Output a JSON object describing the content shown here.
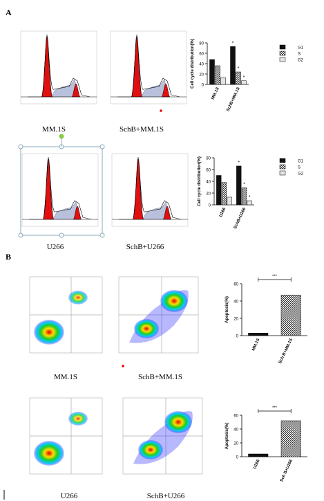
{
  "figure": {
    "panels": [
      "A",
      "B"
    ],
    "captions": [
      "MM.1S",
      "SchB+MM.1S",
      "U266",
      "SchB+U266",
      "MM.1S",
      "SchB+MM.1S",
      "U266",
      "SchB+U266"
    ]
  },
  "chart_data": [
    {
      "type": "bar",
      "ylabel": "Cell cycle distribution(%)",
      "categories": [
        "MM.1S",
        "SchB+MM.1S"
      ],
      "series": [
        {
          "name": "G1",
          "color": "#111111",
          "values": [
            48,
            73
          ],
          "marks": [
            null,
            "*"
          ]
        },
        {
          "name": "S",
          "color": "#7a7a7a",
          "values": [
            36,
            24
          ],
          "marks": [
            null,
            "*"
          ]
        },
        {
          "name": "G2",
          "color": "#e4e4e4",
          "values": [
            13,
            7
          ],
          "marks": [
            null,
            "*"
          ]
        }
      ],
      "ylim": [
        0,
        80
      ],
      "yticks": [
        0,
        20,
        40,
        60,
        80
      ]
    },
    {
      "type": "bar",
      "ylabel": "Cell cycle distribution(%)",
      "categories": [
        "U266",
        "SchB+U266"
      ],
      "series": [
        {
          "name": "G1",
          "color": "#111111",
          "values": [
            50,
            66
          ],
          "marks": [
            null,
            "*"
          ]
        },
        {
          "name": "S",
          "color": "#7a7a7a",
          "values": [
            38,
            29
          ],
          "marks": [
            null,
            "*"
          ]
        },
        {
          "name": "G2",
          "color": "#e4e4e4",
          "values": [
            13,
            7
          ],
          "marks": [
            null,
            "*"
          ]
        }
      ],
      "ylim": [
        0,
        80
      ],
      "yticks": [
        0,
        20,
        40,
        60,
        80
      ]
    },
    {
      "type": "bar",
      "ylabel": "Apoptosis(%)",
      "categories": [
        "MM.1S",
        "Sch B+MM.1S"
      ],
      "values": [
        3,
        47
      ],
      "colors": [
        "#111111",
        "#7a7a7a"
      ],
      "significance": "***",
      "ylim": [
        0,
        60
      ],
      "yticks": [
        0,
        20,
        40,
        60
      ]
    },
    {
      "type": "bar",
      "ylabel": "Apoptosis(%)",
      "categories": [
        "U266",
        "Sch B+U266"
      ],
      "values": [
        4,
        52
      ],
      "colors": [
        "#111111",
        "#7a7a7a"
      ],
      "significance": "***",
      "ylim": [
        0,
        60
      ],
      "yticks": [
        0,
        20,
        40,
        60
      ]
    }
  ]
}
